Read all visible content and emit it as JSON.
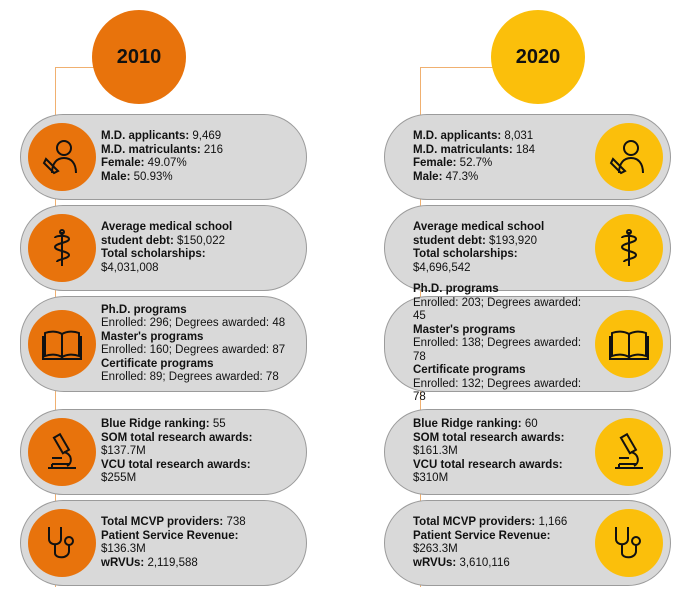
{
  "years": {
    "left": "2010",
    "right": "2020"
  },
  "y2010": {
    "applicants": {
      "label": "M.D. applicants:",
      "value": "9,469"
    },
    "matriculants": {
      "label": "M.D. matriculants:",
      "value": "216"
    },
    "female": {
      "label": "Female:",
      "value": "49.07%"
    },
    "male": {
      "label": "Male:",
      "value": "50.93%"
    },
    "debt_label1": "Average medical school",
    "debt_label2": "student debt:",
    "debt_value": "$150,022",
    "scholar_label": "Total scholarships:",
    "scholar_value": "$4,031,008",
    "phd_label": "Ph.D. programs",
    "phd_value": "Enrolled: 296; Degrees awarded: 48",
    "masters_label": "Master's programs",
    "masters_value": "Enrolled: 160; Degrees awarded: 87",
    "cert_label": "Certificate programs",
    "cert_value": "Enrolled: 89; Degrees awarded: 78",
    "blue_label": "Blue Ridge ranking:",
    "blue_value": "55",
    "som_label": "SOM total research awards:",
    "som_value": "$137.7M",
    "vcu_label": "VCU total research awards:",
    "vcu_value": "$255M",
    "mcvp_label": "Total MCVP providers:",
    "mcvp_value": "738",
    "psr_label": "Patient Service Revenue:",
    "psr_value": "$136.3M",
    "wrvu_label": "wRVUs:",
    "wrvu_value": "2,119,588"
  },
  "y2020": {
    "applicants": {
      "label": "M.D. applicants:",
      "value": "8,031"
    },
    "matriculants": {
      "label": "M.D. matriculants:",
      "value": "184"
    },
    "female": {
      "label": "Female:",
      "value": "52.7%"
    },
    "male": {
      "label": "Male:",
      "value": "47.3%"
    },
    "debt_label1": "Average medical school",
    "debt_label2": "student debt:",
    "debt_value": "$193,920",
    "scholar_label": "Total scholarships:",
    "scholar_value": "$4,696,542",
    "phd_label": "Ph.D. programs",
    "phd_value": "Enrolled: 203; Degrees awarded: 45",
    "masters_label": "Master's programs",
    "masters_value": "Enrolled: 138; Degrees awarded: 78",
    "cert_label": "Certificate programs",
    "cert_value": "Enrolled: 132; Degrees awarded: 78",
    "blue_label": "Blue Ridge ranking:",
    "blue_value": "60",
    "som_label": "SOM total research awards:",
    "som_value": "$161.3M",
    "vcu_label": "VCU total research awards:",
    "vcu_value": "$310M",
    "mcvp_label": "Total MCVP providers:",
    "mcvp_value": "1,166",
    "psr_label": "Patient Service Revenue:",
    "psr_value": "$263.3M",
    "wrvu_label": "wRVUs:",
    "wrvu_value": "3,610,116"
  },
  "colors": {
    "orange": "#e8730c",
    "gold": "#fbbf0b",
    "card": "#d9d9d9"
  },
  "icons": [
    "student-pencil-icon",
    "caduceus-icon",
    "open-book-icon",
    "microscope-icon",
    "stethoscope-icon"
  ]
}
